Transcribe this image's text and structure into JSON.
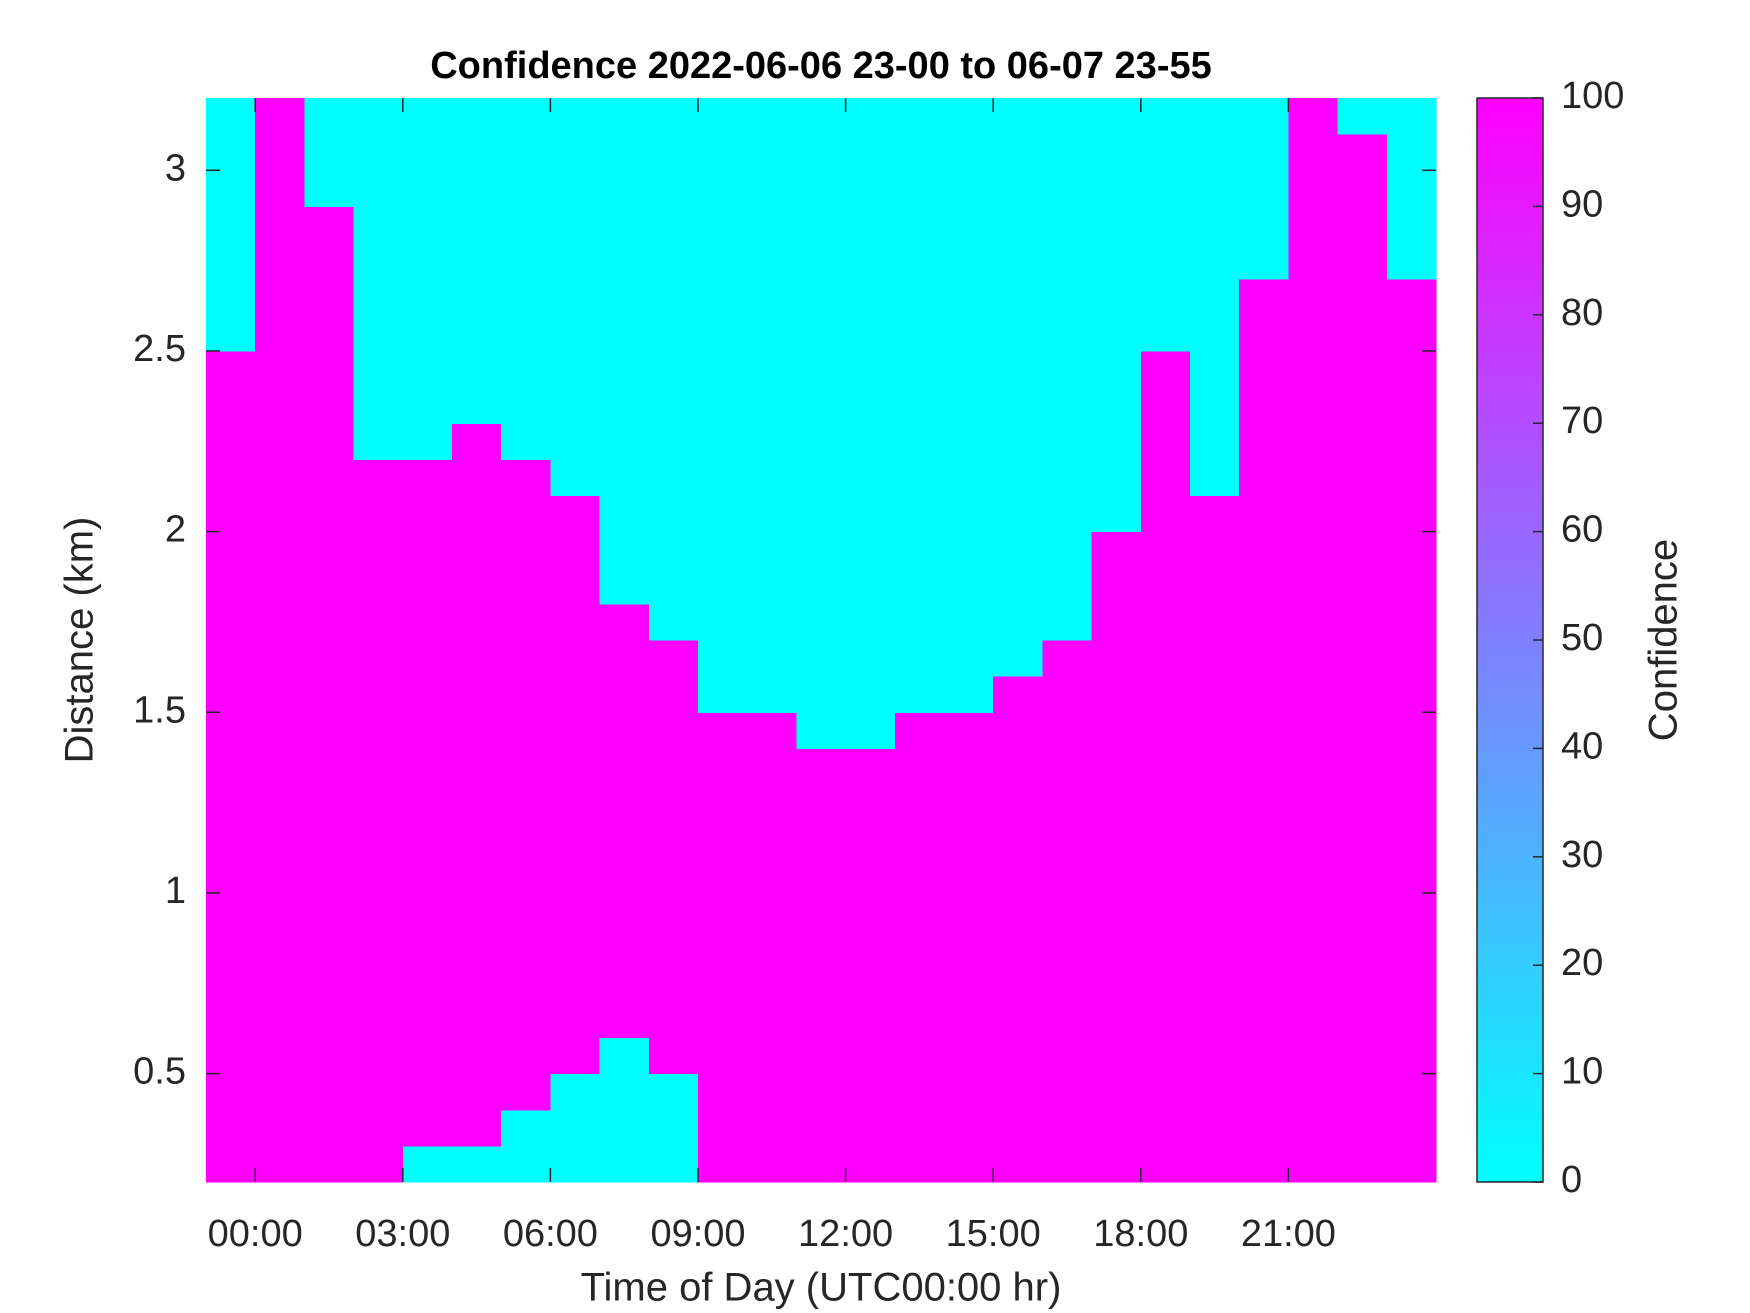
{
  "chart_data": {
    "type": "heatmap",
    "title": "Confidence 2022-06-06 23-00 to 06-07 23-55",
    "x_label": "Time of Day (UTC00:00 hr)",
    "y_label": "Distance (km)",
    "colorbar_label": "Confidence",
    "colormap": [
      "#00ffff",
      "#ff00ff"
    ],
    "clim": [
      0,
      100
    ],
    "cticks": [
      0,
      10,
      20,
      30,
      40,
      50,
      60,
      70,
      80,
      90,
      100
    ],
    "xlim": [
      -1,
      24
    ],
    "ylim": [
      0.2,
      3.2
    ],
    "xticks": [
      {
        "value": 0,
        "label": "00:00"
      },
      {
        "value": 3,
        "label": "03:00"
      },
      {
        "value": 6,
        "label": "06:00"
      },
      {
        "value": 9,
        "label": "09:00"
      },
      {
        "value": 12,
        "label": "12:00"
      },
      {
        "value": 15,
        "label": "15:00"
      },
      {
        "value": 18,
        "label": "18:00"
      },
      {
        "value": 21,
        "label": "21:00"
      }
    ],
    "yticks": [
      0.5,
      1,
      1.5,
      2,
      2.5,
      3
    ],
    "x": [
      -1,
      0,
      1,
      2,
      3,
      4,
      5,
      6,
      7,
      8,
      9,
      10,
      11,
      12,
      13,
      14,
      15,
      16,
      17,
      18,
      19,
      20,
      21,
      22,
      23
    ],
    "y": [
      0.2,
      0.3,
      0.4,
      0.5,
      0.6,
      0.7,
      0.8,
      0.9,
      1.0,
      1.1,
      1.2,
      1.3,
      1.4,
      1.5,
      1.6,
      1.7,
      1.8,
      1.9,
      2.0,
      2.1,
      2.2,
      2.3,
      2.4,
      2.5,
      2.6,
      2.7,
      2.8,
      2.9,
      3.0,
      3.1
    ],
    "z": [
      [
        100,
        100,
        100,
        100,
        0,
        0,
        0,
        0,
        0,
        0,
        100,
        100,
        100,
        100,
        100,
        100,
        100,
        100,
        100,
        100,
        100,
        100,
        100,
        100,
        100
      ],
      [
        100,
        100,
        100,
        100,
        100,
        100,
        0,
        0,
        0,
        0,
        100,
        100,
        100,
        100,
        100,
        100,
        100,
        100,
        100,
        100,
        100,
        100,
        100,
        100,
        100
      ],
      [
        100,
        100,
        100,
        100,
        100,
        100,
        100,
        0,
        0,
        0,
        100,
        100,
        100,
        100,
        100,
        100,
        100,
        100,
        100,
        100,
        100,
        100,
        100,
        100,
        100
      ],
      [
        100,
        100,
        100,
        100,
        100,
        100,
        100,
        100,
        0,
        100,
        100,
        100,
        100,
        100,
        100,
        100,
        100,
        100,
        100,
        100,
        100,
        100,
        100,
        100,
        100
      ],
      [
        100,
        100,
        100,
        100,
        100,
        100,
        100,
        100,
        100,
        100,
        100,
        100,
        100,
        100,
        100,
        100,
        100,
        100,
        100,
        100,
        100,
        100,
        100,
        100,
        100
      ],
      [
        100,
        100,
        100,
        100,
        100,
        100,
        100,
        100,
        100,
        100,
        100,
        100,
        100,
        100,
        100,
        100,
        100,
        100,
        100,
        100,
        100,
        100,
        100,
        100,
        100
      ],
      [
        100,
        100,
        100,
        100,
        100,
        100,
        100,
        100,
        100,
        100,
        100,
        100,
        100,
        100,
        100,
        100,
        100,
        100,
        100,
        100,
        100,
        100,
        100,
        100,
        100
      ],
      [
        100,
        100,
        100,
        100,
        100,
        100,
        100,
        100,
        100,
        100,
        100,
        100,
        100,
        100,
        100,
        100,
        100,
        100,
        100,
        100,
        100,
        100,
        100,
        100,
        100
      ],
      [
        100,
        100,
        100,
        100,
        100,
        100,
        100,
        100,
        100,
        100,
        100,
        100,
        100,
        100,
        100,
        100,
        100,
        100,
        100,
        100,
        100,
        100,
        100,
        100,
        100
      ],
      [
        100,
        100,
        100,
        100,
        100,
        100,
        100,
        100,
        100,
        100,
        100,
        100,
        100,
        100,
        100,
        100,
        100,
        100,
        100,
        100,
        100,
        100,
        100,
        100,
        100
      ],
      [
        100,
        100,
        100,
        100,
        100,
        100,
        100,
        100,
        100,
        100,
        100,
        100,
        100,
        100,
        100,
        100,
        100,
        100,
        100,
        100,
        100,
        100,
        100,
        100,
        100
      ],
      [
        100,
        100,
        100,
        100,
        100,
        100,
        100,
        100,
        100,
        100,
        100,
        100,
        100,
        100,
        100,
        100,
        100,
        100,
        100,
        100,
        100,
        100,
        100,
        100,
        100
      ],
      [
        100,
        100,
        100,
        100,
        100,
        100,
        100,
        100,
        100,
        100,
        100,
        100,
        0,
        0,
        100,
        100,
        100,
        100,
        100,
        100,
        100,
        100,
        100,
        100,
        100
      ],
      [
        100,
        100,
        100,
        100,
        100,
        100,
        100,
        100,
        100,
        100,
        0,
        0,
        0,
        0,
        0,
        0,
        100,
        100,
        100,
        100,
        100,
        100,
        100,
        100,
        100
      ],
      [
        100,
        100,
        100,
        100,
        100,
        100,
        100,
        100,
        100,
        100,
        0,
        0,
        0,
        0,
        0,
        0,
        0,
        100,
        100,
        100,
        100,
        100,
        100,
        100,
        100
      ],
      [
        100,
        100,
        100,
        100,
        100,
        100,
        100,
        100,
        100,
        0,
        0,
        0,
        0,
        0,
        0,
        0,
        0,
        0,
        100,
        100,
        100,
        100,
        100,
        100,
        100
      ],
      [
        100,
        100,
        100,
        100,
        100,
        100,
        100,
        100,
        0,
        0,
        0,
        0,
        0,
        0,
        0,
        0,
        0,
        0,
        100,
        100,
        100,
        100,
        100,
        100,
        100
      ],
      [
        100,
        100,
        100,
        100,
        100,
        100,
        100,
        100,
        0,
        0,
        0,
        0,
        0,
        0,
        0,
        0,
        0,
        0,
        100,
        100,
        100,
        100,
        100,
        100,
        100
      ],
      [
        100,
        100,
        100,
        100,
        100,
        100,
        100,
        100,
        0,
        0,
        0,
        0,
        0,
        0,
        0,
        0,
        0,
        0,
        0,
        100,
        100,
        100,
        100,
        100,
        100
      ],
      [
        100,
        100,
        100,
        100,
        100,
        100,
        100,
        0,
        0,
        0,
        0,
        0,
        0,
        0,
        0,
        0,
        0,
        0,
        0,
        100,
        0,
        100,
        100,
        100,
        100
      ],
      [
        100,
        100,
        100,
        0,
        0,
        100,
        0,
        0,
        0,
        0,
        0,
        0,
        0,
        0,
        0,
        0,
        0,
        0,
        0,
        100,
        0,
        100,
        100,
        100,
        100
      ],
      [
        100,
        100,
        100,
        0,
        0,
        0,
        0,
        0,
        0,
        0,
        0,
        0,
        0,
        0,
        0,
        0,
        0,
        0,
        0,
        100,
        0,
        100,
        100,
        100,
        100
      ],
      [
        100,
        100,
        100,
        0,
        0,
        0,
        0,
        0,
        0,
        0,
        0,
        0,
        0,
        0,
        0,
        0,
        0,
        0,
        0,
        100,
        0,
        100,
        100,
        100,
        100
      ],
      [
        0,
        100,
        100,
        0,
        0,
        0,
        0,
        0,
        0,
        0,
        0,
        0,
        0,
        0,
        0,
        0,
        0,
        0,
        0,
        0,
        0,
        100,
        100,
        100,
        100
      ],
      [
        0,
        100,
        100,
        0,
        0,
        0,
        0,
        0,
        0,
        0,
        0,
        0,
        0,
        0,
        0,
        0,
        0,
        0,
        0,
        0,
        0,
        100,
        100,
        100,
        100
      ],
      [
        0,
        100,
        100,
        0,
        0,
        0,
        0,
        0,
        0,
        0,
        0,
        0,
        0,
        0,
        0,
        0,
        0,
        0,
        0,
        0,
        0,
        0,
        100,
        100,
        0
      ],
      [
        0,
        100,
        100,
        0,
        0,
        0,
        0,
        0,
        0,
        0,
        0,
        0,
        0,
        0,
        0,
        0,
        0,
        0,
        0,
        0,
        0,
        0,
        100,
        100,
        0
      ],
      [
        0,
        100,
        0,
        0,
        0,
        0,
        0,
        0,
        0,
        0,
        0,
        0,
        0,
        0,
        0,
        0,
        0,
        0,
        0,
        0,
        0,
        0,
        100,
        100,
        0
      ],
      [
        0,
        100,
        0,
        0,
        0,
        0,
        0,
        0,
        0,
        0,
        0,
        0,
        0,
        0,
        0,
        0,
        0,
        0,
        0,
        0,
        0,
        0,
        100,
        100,
        0
      ],
      [
        0,
        100,
        0,
        0,
        0,
        0,
        0,
        0,
        0,
        0,
        0,
        0,
        0,
        0,
        0,
        0,
        0,
        0,
        0,
        0,
        0,
        0,
        100,
        0,
        0
      ]
    ]
  }
}
